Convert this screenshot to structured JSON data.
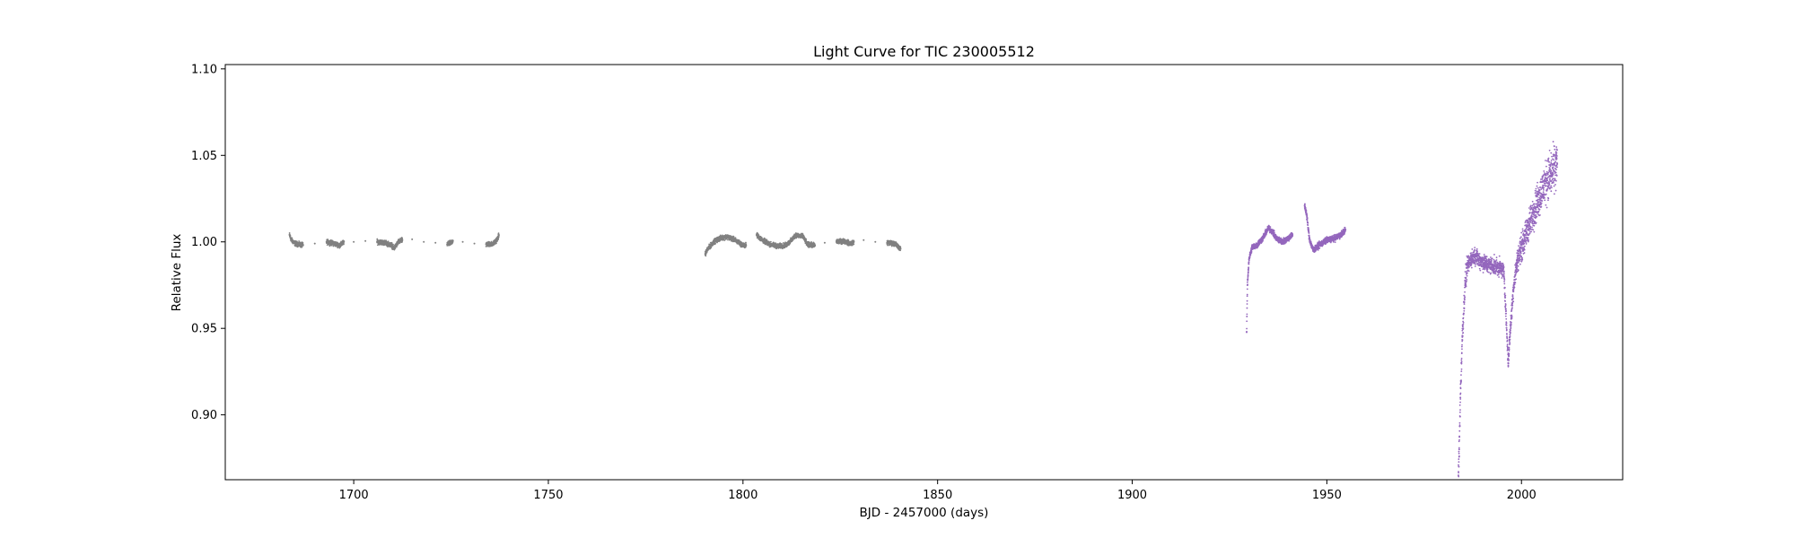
{
  "chart_data": {
    "type": "scatter",
    "title": "Light Curve for TIC 230005512",
    "xlabel": "BJD - 2457000 (days)",
    "ylabel": "Relative Flux",
    "xlim": [
      1667,
      2026
    ],
    "ylim": [
      0.8625,
      1.1025
    ],
    "x_ticks": [
      1700,
      1750,
      1800,
      1850,
      1900,
      1950,
      2000
    ],
    "y_ticks": [
      0.9,
      0.95,
      1.0,
      1.05,
      1.1
    ],
    "x_tick_labels": [
      "1700",
      "1750",
      "1800",
      "1850",
      "1900",
      "1950",
      "2000"
    ],
    "y_tick_labels": [
      "0.90",
      "0.95",
      "1.00",
      "1.05",
      "1.10"
    ],
    "grid": false,
    "legend": false,
    "series": [
      {
        "color": "#808080",
        "points": [
          [
            1683.5,
            1.004
          ],
          [
            1684.0,
            1.001
          ],
          [
            1685.0,
            0.999
          ],
          [
            1687.0,
            0.998
          ],
          [
            1690.0,
            0.999
          ],
          [
            1693.0,
            1.0
          ],
          [
            1695.0,
            0.999
          ],
          [
            1696.5,
            0.998
          ],
          [
            1697.5,
            1.0
          ],
          [
            1700.0,
            1.0
          ],
          [
            1703.0,
            1.0005
          ],
          [
            1706.0,
            1.0
          ],
          [
            1708.0,
            0.9995
          ],
          [
            1709.8,
            0.998
          ],
          [
            1710.3,
            0.996
          ],
          [
            1711.5,
            1.0
          ],
          [
            1712.5,
            1.001
          ],
          [
            1715.0,
            1.0015
          ],
          [
            1718.0,
            1.0
          ],
          [
            1721.0,
            0.9995
          ],
          [
            1724.0,
            0.9985
          ],
          [
            1724.6,
            0.999
          ],
          [
            1725.5,
            1.0005
          ],
          [
            1728.0,
            1.0
          ],
          [
            1731.0,
            0.999
          ],
          [
            1734.0,
            0.9985
          ],
          [
            1736.0,
            0.999
          ],
          [
            1737.0,
            1.002
          ],
          [
            1737.3,
            1.004
          ],
          [
            1790.3,
            0.993
          ],
          [
            1791.0,
            0.996
          ],
          [
            1792.5,
            1.0
          ],
          [
            1794.0,
            1.002
          ],
          [
            1796.0,
            1.003
          ],
          [
            1798.0,
            1.001
          ],
          [
            1800.0,
            0.998
          ],
          [
            1800.8,
            0.998
          ],
          [
            1803.5,
            1.004
          ],
          [
            1805.0,
            1.001
          ],
          [
            1807.0,
            0.9985
          ],
          [
            1809.0,
            0.9975
          ],
          [
            1811.0,
            0.998
          ],
          [
            1812.5,
            1.001
          ],
          [
            1813.5,
            1.004
          ],
          [
            1815.5,
            1.003
          ],
          [
            1816.5,
            0.9985
          ],
          [
            1818.5,
            0.998
          ],
          [
            1821.0,
            0.9995
          ],
          [
            1824.0,
            1.0
          ],
          [
            1826.0,
            1.0005
          ],
          [
            1827.5,
            0.999
          ],
          [
            1828.5,
            1.0
          ],
          [
            1831.0,
            1.001
          ],
          [
            1834.0,
            1.0
          ],
          [
            1837.0,
            0.9995
          ],
          [
            1839.0,
            0.999
          ],
          [
            1840.5,
            0.996
          ]
        ]
      },
      {
        "color": "#9467bd",
        "points": [
          [
            1929.4,
            0.948
          ],
          [
            1929.6,
            0.975
          ],
          [
            1930.0,
            0.99
          ],
          [
            1930.8,
            0.997
          ],
          [
            1932.0,
            0.998
          ],
          [
            1933.5,
            1.002
          ],
          [
            1935.0,
            1.008
          ],
          [
            1936.0,
            1.006
          ],
          [
            1937.0,
            1.002
          ],
          [
            1938.5,
            1.0
          ],
          [
            1940.0,
            1.002
          ],
          [
            1941.2,
            1.004
          ],
          [
            1944.3,
            1.021
          ],
          [
            1944.8,
            1.016
          ],
          [
            1945.5,
            1.002
          ],
          [
            1946.5,
            0.995
          ],
          [
            1948.0,
            0.998
          ],
          [
            1950.0,
            1.001
          ],
          [
            1952.0,
            1.002
          ],
          [
            1953.5,
            1.004
          ],
          [
            1954.8,
            1.007
          ],
          [
            1983.8,
            0.865
          ],
          [
            1984.0,
            0.88
          ],
          [
            1984.3,
            0.91
          ],
          [
            1984.8,
            0.945
          ],
          [
            1985.5,
            0.975
          ],
          [
            1986.0,
            0.985
          ],
          [
            1987.0,
            0.99
          ],
          [
            1988.0,
            0.992
          ],
          [
            1989.5,
            0.989
          ],
          [
            1991.0,
            0.987
          ],
          [
            1993.0,
            0.986
          ],
          [
            1994.5,
            0.985
          ],
          [
            1995.5,
            0.983
          ],
          [
            1996.6,
            0.93
          ],
          [
            1997.0,
            0.945
          ],
          [
            1998.0,
            0.975
          ],
          [
            1999.0,
            0.99
          ],
          [
            2000.5,
            1.0
          ],
          [
            2002.0,
            1.01
          ],
          [
            2003.5,
            1.02
          ],
          [
            2005.0,
            1.028
          ],
          [
            2006.5,
            1.036
          ],
          [
            2008.0,
            1.04
          ],
          [
            2009.2,
            1.045
          ]
        ]
      }
    ]
  }
}
